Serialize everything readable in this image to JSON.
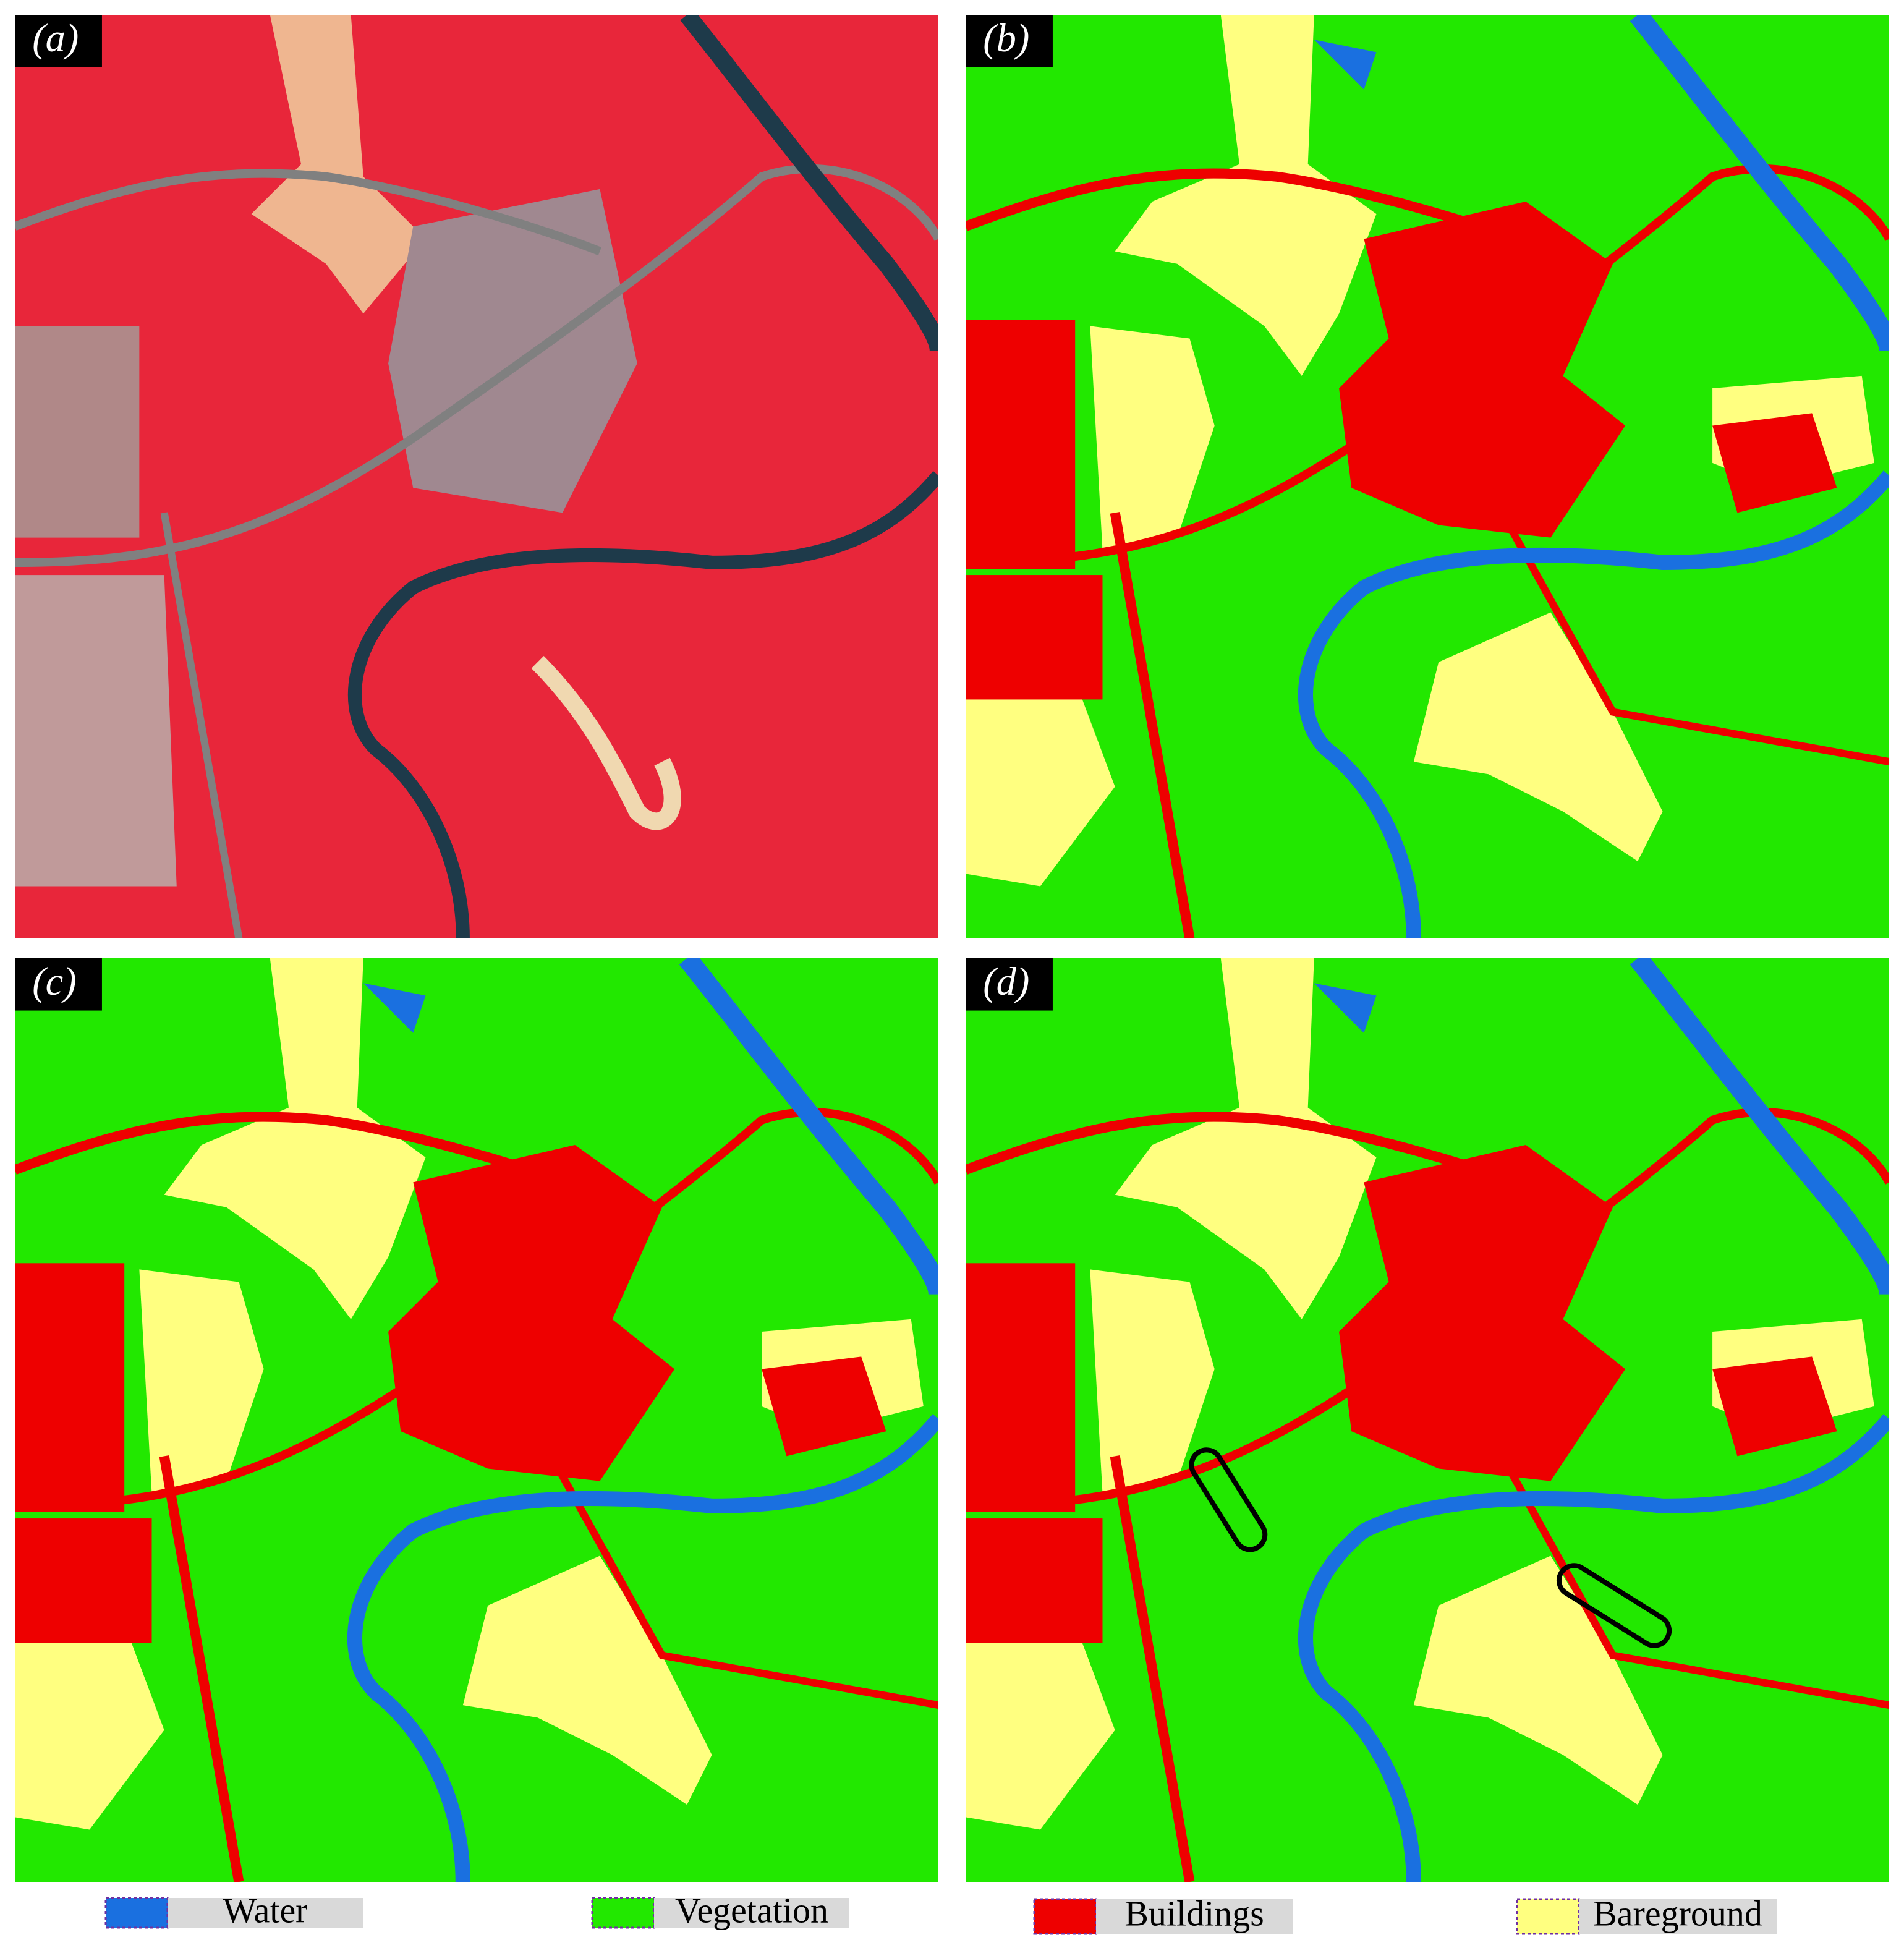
{
  "panels": [
    {
      "label": "(a)"
    },
    {
      "label": "(b)"
    },
    {
      "label": "(c)"
    },
    {
      "label": "(d)"
    }
  ],
  "legend": [
    {
      "label": "Water"
    },
    {
      "label": "Vegetation"
    },
    {
      "label": "Buildings"
    },
    {
      "label": "Bareground"
    }
  ]
}
